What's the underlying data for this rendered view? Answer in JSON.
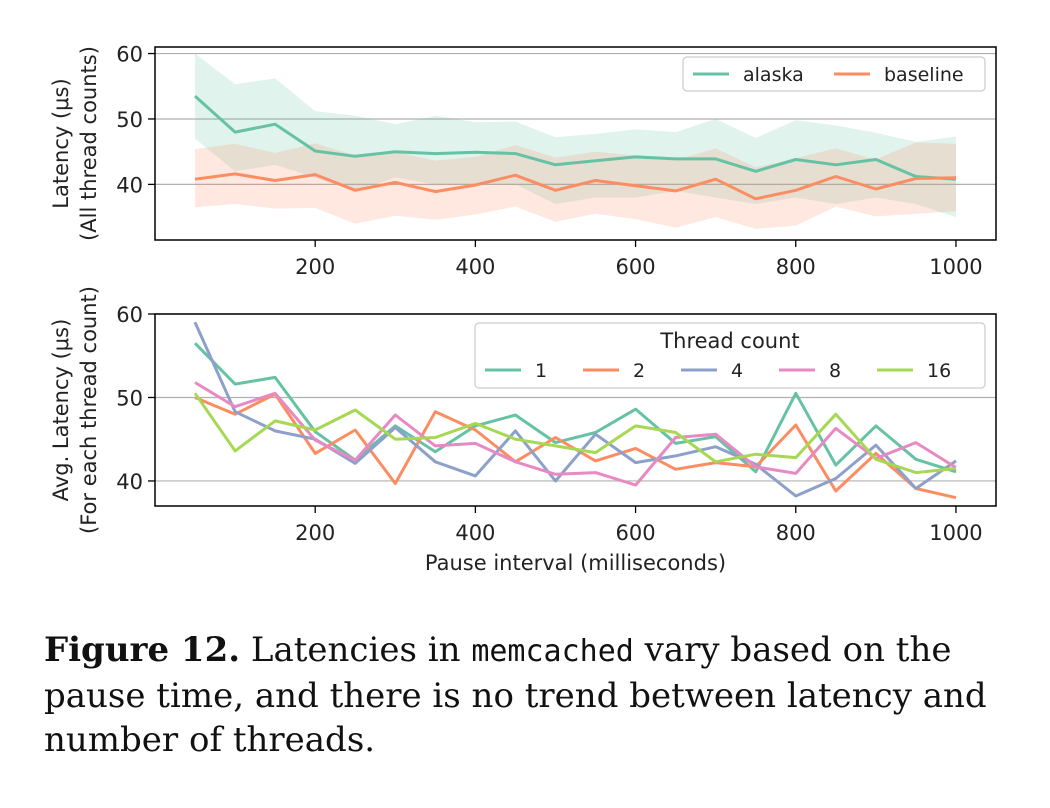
{
  "figure": {
    "caption_label": "Figure 12.",
    "caption_pre": " Latencies in ",
    "caption_code": "memcached",
    "caption_post": " vary based on the pause time, and there is no trend between latency and number of threads."
  },
  "chart_data": [
    {
      "type": "line",
      "title": "",
      "xlabel": "",
      "ylabel": "Latency (μs)",
      "ylabel2": "(All thread counts)",
      "xlim": [
        0,
        1050
      ],
      "ylim": [
        31.5,
        61
      ],
      "xticks": [
        200,
        400,
        600,
        800,
        1000
      ],
      "yticks": [
        40,
        50,
        60
      ],
      "grid": "horizontal",
      "legend": "top-right",
      "x": [
        50,
        100,
        150,
        200,
        250,
        300,
        350,
        400,
        450,
        500,
        550,
        600,
        650,
        700,
        750,
        800,
        850,
        900,
        950,
        1000
      ],
      "series": [
        {
          "name": "alaska",
          "color": "#66c2a5",
          "values": [
            53.5,
            48.0,
            49.2,
            45.1,
            44.3,
            45.0,
            44.7,
            44.9,
            44.7,
            43.0,
            43.6,
            44.2,
            43.9,
            43.9,
            42.0,
            43.8,
            43.0,
            43.8,
            41.2,
            40.8
          ],
          "lower": [
            47,
            42,
            43,
            41,
            39,
            41,
            40,
            40,
            40,
            37,
            38,
            38,
            39,
            38,
            37,
            38,
            37,
            38,
            37,
            35
          ],
          "upper": [
            60,
            55.3,
            56.2,
            51.2,
            50.5,
            49.2,
            50.5,
            49.5,
            49.6,
            47.2,
            47.7,
            48.4,
            48.0,
            50.0,
            47.1,
            49.8,
            49.0,
            47.9,
            46.5,
            47.3
          ]
        },
        {
          "name": "baseline",
          "color": "#fc8d62",
          "values": [
            40.8,
            41.6,
            40.6,
            41.5,
            39.1,
            40.3,
            38.9,
            39.9,
            41.4,
            39.1,
            40.6,
            39.8,
            39.0,
            40.8,
            37.8,
            39.1,
            41.2,
            39.3,
            40.9,
            41.0
          ],
          "lower": [
            36.5,
            37,
            36.3,
            36.4,
            34,
            35.2,
            34.6,
            35.4,
            36.6,
            34.3,
            35.5,
            34.7,
            33.4,
            35,
            33.2,
            33.7,
            36.6,
            35.1,
            35.5,
            35.9
          ],
          "upper": [
            45.4,
            46.2,
            44.8,
            46.3,
            44.4,
            45.0,
            43.6,
            44.2,
            46.0,
            44.1,
            45.0,
            44.4,
            43.7,
            45.5,
            42.6,
            44.0,
            45.5,
            43.8,
            46.4,
            46.2
          ]
        }
      ]
    },
    {
      "type": "line",
      "title": "",
      "xlabel": "Pause interval (milliseconds)",
      "ylabel": "Avg. Latency (μs)",
      "ylabel2": "(For each thread count)",
      "xlim": [
        0,
        1050
      ],
      "ylim": [
        37,
        60
      ],
      "xticks": [
        200,
        400,
        600,
        800,
        1000
      ],
      "yticks": [
        40,
        50,
        60
      ],
      "grid": "horizontal",
      "legend": "top-right",
      "legend_title": "Thread count",
      "x": [
        50,
        100,
        150,
        200,
        250,
        300,
        350,
        400,
        450,
        500,
        550,
        600,
        650,
        700,
        750,
        800,
        850,
        900,
        950,
        1000
      ],
      "series": [
        {
          "name": "1",
          "color": "#66c2a5",
          "values": [
            56.5,
            51.6,
            52.4,
            45.9,
            42.5,
            46.6,
            43.5,
            46.6,
            47.9,
            44.6,
            45.8,
            48.6,
            44.5,
            45.3,
            41.1,
            50.5,
            41.9,
            46.6,
            42.6,
            41.1
          ]
        },
        {
          "name": "2",
          "color": "#fc8d62",
          "values": [
            50.0,
            48.0,
            50.4,
            43.3,
            46.1,
            39.7,
            48.3,
            46.1,
            42.3,
            45.2,
            42.4,
            43.9,
            41.4,
            42.2,
            41.7,
            46.7,
            38.8,
            43.3,
            39.1,
            38.0
          ]
        },
        {
          "name": "4",
          "color": "#8da0cb",
          "values": [
            59.0,
            48.3,
            46.0,
            45.0,
            42.1,
            46.4,
            42.3,
            40.6,
            46.0,
            40.0,
            45.6,
            42.2,
            43.0,
            44.1,
            42.0,
            38.2,
            40.3,
            44.3,
            39.1,
            42.4
          ]
        },
        {
          "name": "8",
          "color": "#e78ac3",
          "values": [
            51.8,
            48.9,
            50.5,
            44.9,
            42.5,
            47.9,
            44.2,
            44.5,
            42.3,
            40.8,
            41.0,
            39.5,
            45.2,
            45.6,
            41.7,
            40.9,
            46.3,
            42.7,
            44.6,
            41.6
          ]
        },
        {
          "name": "16",
          "color": "#a6d854",
          "values": [
            50.5,
            43.6,
            47.2,
            46.1,
            48.5,
            45.0,
            45.2,
            46.9,
            45.0,
            44.2,
            43.4,
            46.6,
            45.8,
            42.3,
            43.2,
            42.8,
            48.0,
            42.6,
            41.0,
            41.5
          ]
        }
      ]
    }
  ]
}
